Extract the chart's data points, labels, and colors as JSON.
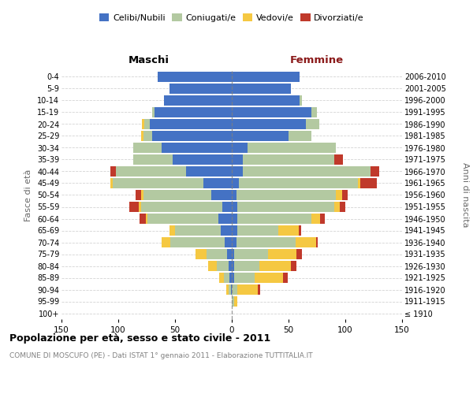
{
  "age_groups": [
    "100+",
    "95-99",
    "90-94",
    "85-89",
    "80-84",
    "75-79",
    "70-74",
    "65-69",
    "60-64",
    "55-59",
    "50-54",
    "45-49",
    "40-44",
    "35-39",
    "30-34",
    "25-29",
    "20-24",
    "15-19",
    "10-14",
    "5-9",
    "0-4"
  ],
  "birth_years": [
    "≤ 1910",
    "1911-1915",
    "1916-1920",
    "1921-1925",
    "1926-1930",
    "1931-1935",
    "1936-1940",
    "1941-1945",
    "1946-1950",
    "1951-1955",
    "1956-1960",
    "1961-1965",
    "1966-1970",
    "1971-1975",
    "1976-1980",
    "1981-1985",
    "1986-1990",
    "1991-1995",
    "1996-2000",
    "2001-2005",
    "2006-2010"
  ],
  "colors": {
    "celibe": "#4472C4",
    "coniugato": "#B3C9A1",
    "vedovo": "#F5C842",
    "divorziato": "#C0392B"
  },
  "maschi": {
    "celibe": [
      0,
      0,
      1,
      2,
      3,
      4,
      6,
      10,
      12,
      8,
      18,
      25,
      40,
      52,
      62,
      70,
      72,
      68,
      60,
      55,
      65
    ],
    "coniugato": [
      0,
      0,
      2,
      5,
      10,
      18,
      48,
      40,
      62,
      72,
      60,
      80,
      62,
      35,
      25,
      8,
      5,
      2,
      0,
      0,
      0
    ],
    "vedovo": [
      0,
      0,
      2,
      4,
      8,
      10,
      8,
      5,
      2,
      2,
      2,
      2,
      0,
      0,
      0,
      2,
      2,
      0,
      0,
      0,
      0
    ],
    "divorziato": [
      0,
      0,
      0,
      0,
      0,
      0,
      0,
      0,
      5,
      8,
      5,
      0,
      5,
      0,
      0,
      0,
      0,
      0,
      0,
      0,
      0
    ]
  },
  "femmine": {
    "nubile": [
      0,
      0,
      0,
      2,
      2,
      2,
      4,
      5,
      5,
      5,
      4,
      6,
      10,
      10,
      14,
      50,
      65,
      70,
      60,
      52,
      60
    ],
    "coniugata": [
      0,
      2,
      5,
      18,
      22,
      30,
      52,
      36,
      65,
      85,
      88,
      105,
      112,
      80,
      78,
      20,
      12,
      5,
      2,
      0,
      0
    ],
    "vedova": [
      0,
      3,
      18,
      25,
      28,
      25,
      18,
      18,
      8,
      5,
      5,
      2,
      0,
      0,
      0,
      0,
      0,
      0,
      0,
      0,
      0
    ],
    "divorziata": [
      0,
      0,
      2,
      4,
      5,
      5,
      2,
      2,
      4,
      5,
      5,
      15,
      8,
      8,
      0,
      0,
      0,
      0,
      0,
      0,
      0
    ]
  },
  "xlim": 150,
  "title": "Popolazione per età, sesso e stato civile - 2011",
  "subtitle": "COMUNE DI MOSCUFO (PE) - Dati ISTAT 1° gennaio 2011 - Elaborazione TUTTITALIA.IT",
  "maschi_label": "Maschi",
  "femmine_label": "Femmine",
  "ylabel_left": "Fasce di età",
  "ylabel_right": "Anni di nascita",
  "legend_labels": [
    "Celibi/Nubili",
    "Coniugati/e",
    "Vedovi/e",
    "Divorziati/e"
  ],
  "femmine_color": "#8B1A1A",
  "bg_color": "#ffffff"
}
